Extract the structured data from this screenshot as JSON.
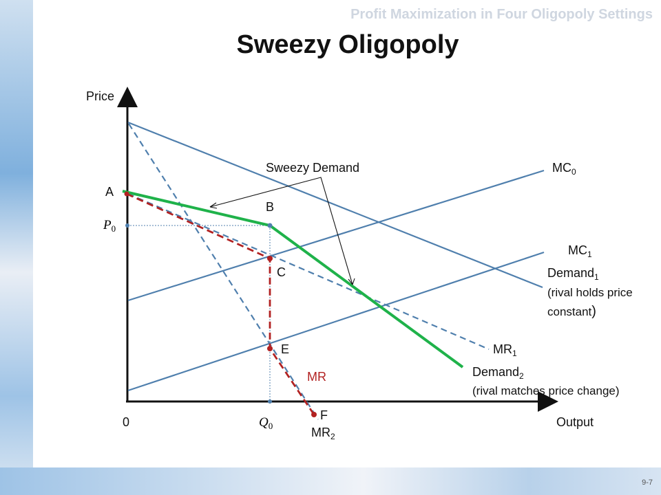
{
  "header": "Profit Maximization in Four Oligopoly Settings",
  "title": "Sweezy Oligopoly",
  "page_number": "9-7",
  "axes": {
    "y": "Price",
    "x": "Output",
    "origin": "0"
  },
  "points": {
    "a": "A",
    "b": "B",
    "c": "C",
    "e": "E",
    "f": "F"
  },
  "markers": {
    "p0_base": "P",
    "p0_sub": "0",
    "q0_base": "Q",
    "q0_sub": "0"
  },
  "curves": {
    "sweezy_demand": "Sweezy Demand",
    "mc0_base": "MC",
    "mc0_sub": "0",
    "mc1_base": "MC",
    "mc1_sub": "1",
    "demand1_base": "Demand",
    "demand1_sub": "1",
    "demand1_note_a": "(rival holds price",
    "demand1_note_b": "constant",
    "demand1_note_close": ")",
    "mr1_base": "MR",
    "mr1_sub": "1",
    "demand2_base": "Demand",
    "demand2_sub": "2",
    "demand2_note": "(rival matches price change)",
    "mr": "MR",
    "mr2_base": "MR",
    "mr2_sub": "2"
  },
  "colors": {
    "blue": "#4f7fad",
    "green": "#1fb24a",
    "red": "#b22222"
  }
}
